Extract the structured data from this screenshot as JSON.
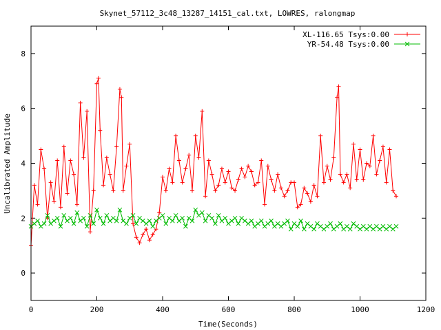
{
  "chart_data": {
    "type": "line",
    "title": "Skynet_57112_3c48_13287_14151_cal.txt, LOWRES, ralongmap",
    "xlabel": "Time(Seconds)",
    "ylabel": "Uncalibrated Amplitude",
    "xlim": [
      0,
      1200
    ],
    "ylim": [
      -1,
      9
    ],
    "xticks": [
      0,
      200,
      400,
      600,
      800,
      1000,
      1200
    ],
    "yticks": [
      0,
      2,
      4,
      6,
      8
    ],
    "grid": false,
    "legend_position": "top-right",
    "series": [
      {
        "name": "XL-116.65 Tsys:0.00",
        "color": "#ff0000",
        "marker": "plus",
        "x": [
          0,
          10,
          20,
          30,
          40,
          50,
          60,
          70,
          80,
          90,
          100,
          110,
          120,
          130,
          140,
          150,
          160,
          170,
          180,
          190,
          200,
          205,
          210,
          220,
          230,
          240,
          250,
          260,
          270,
          275,
          280,
          290,
          300,
          310,
          320,
          330,
          340,
          350,
          360,
          370,
          380,
          390,
          400,
          410,
          420,
          430,
          440,
          450,
          460,
          470,
          480,
          490,
          500,
          510,
          520,
          530,
          540,
          550,
          560,
          570,
          580,
          590,
          600,
          610,
          620,
          630,
          640,
          650,
          660,
          670,
          680,
          690,
          700,
          710,
          720,
          730,
          740,
          750,
          760,
          770,
          780,
          790,
          800,
          810,
          820,
          830,
          840,
          850,
          860,
          870,
          880,
          890,
          900,
          910,
          920,
          930,
          935,
          940,
          950,
          960,
          970,
          980,
          990,
          1000,
          1010,
          1020,
          1030,
          1040,
          1050,
          1060,
          1070,
          1080,
          1090,
          1100,
          1110
        ],
        "y": [
          1.0,
          3.2,
          2.5,
          4.5,
          3.8,
          2.0,
          3.3,
          2.6,
          4.1,
          2.4,
          4.6,
          2.9,
          4.1,
          3.6,
          2.5,
          6.2,
          4.2,
          5.9,
          1.5,
          3.0,
          6.9,
          7.1,
          5.2,
          3.2,
          4.2,
          3.6,
          3.0,
          4.6,
          6.7,
          6.4,
          3.0,
          3.9,
          4.7,
          1.8,
          1.3,
          1.1,
          1.4,
          1.6,
          1.2,
          1.4,
          1.6,
          2.2,
          3.5,
          3.0,
          3.8,
          3.3,
          5.0,
          4.1,
          3.3,
          3.8,
          4.3,
          3.0,
          5.0,
          4.2,
          5.9,
          2.8,
          4.1,
          3.6,
          3.0,
          3.2,
          3.8,
          3.3,
          3.7,
          3.1,
          3.0,
          3.4,
          3.8,
          3.5,
          3.9,
          3.7,
          3.2,
          3.3,
          4.1,
          2.5,
          3.9,
          3.4,
          3.0,
          3.6,
          3.1,
          2.8,
          3.0,
          3.3,
          3.3,
          2.4,
          2.5,
          3.1,
          2.9,
          2.6,
          3.2,
          2.8,
          5.0,
          3.3,
          3.9,
          3.4,
          4.2,
          6.4,
          6.8,
          3.6,
          3.3,
          3.6,
          3.1,
          4.7,
          3.4,
          4.5,
          3.4,
          4.0,
          3.9,
          5.0,
          3.6,
          4.1,
          4.6,
          3.3,
          4.5,
          3.0,
          2.8
        ]
      },
      {
        "name": "YR-54.48 Tsys:0.00",
        "color": "#00bb00",
        "marker": "cross",
        "x": [
          0,
          10,
          20,
          30,
          40,
          50,
          60,
          70,
          80,
          90,
          100,
          110,
          120,
          130,
          140,
          150,
          160,
          170,
          180,
          190,
          200,
          210,
          220,
          230,
          240,
          250,
          260,
          270,
          280,
          290,
          300,
          310,
          320,
          330,
          340,
          350,
          360,
          370,
          380,
          390,
          400,
          410,
          420,
          430,
          440,
          450,
          460,
          470,
          480,
          490,
          500,
          510,
          520,
          530,
          540,
          550,
          560,
          570,
          580,
          590,
          600,
          610,
          620,
          630,
          640,
          650,
          660,
          670,
          680,
          690,
          700,
          710,
          720,
          730,
          740,
          750,
          760,
          770,
          780,
          790,
          800,
          810,
          820,
          830,
          840,
          850,
          860,
          870,
          880,
          890,
          900,
          910,
          920,
          930,
          940,
          950,
          960,
          970,
          980,
          990,
          1000,
          1010,
          1020,
          1030,
          1040,
          1050,
          1060,
          1070,
          1080,
          1090,
          1100,
          1110
        ],
        "y": [
          1.7,
          1.8,
          1.9,
          1.7,
          1.8,
          2.1,
          1.8,
          1.9,
          2.0,
          1.7,
          2.1,
          1.9,
          2.0,
          1.8,
          2.2,
          1.9,
          2.0,
          1.7,
          2.1,
          1.8,
          2.3,
          2.0,
          1.8,
          2.1,
          1.9,
          2.0,
          1.9,
          2.3,
          1.9,
          1.8,
          2.0,
          2.1,
          1.8,
          2.0,
          1.9,
          1.8,
          1.9,
          1.7,
          1.9,
          2.0,
          2.1,
          1.8,
          2.0,
          1.9,
          2.1,
          1.9,
          2.0,
          1.7,
          2.0,
          1.9,
          2.3,
          2.1,
          2.2,
          1.9,
          2.1,
          2.0,
          1.8,
          2.1,
          1.9,
          2.0,
          1.8,
          1.9,
          2.0,
          1.8,
          2.0,
          1.9,
          1.8,
          1.9,
          1.7,
          1.8,
          1.9,
          1.7,
          1.8,
          1.9,
          1.7,
          1.8,
          1.7,
          1.8,
          1.9,
          1.6,
          1.8,
          1.7,
          1.9,
          1.6,
          1.8,
          1.7,
          1.6,
          1.8,
          1.7,
          1.6,
          1.7,
          1.8,
          1.6,
          1.7,
          1.8,
          1.6,
          1.7,
          1.6,
          1.8,
          1.7,
          1.6,
          1.7,
          1.6,
          1.7,
          1.6,
          1.7,
          1.6,
          1.7,
          1.6,
          1.7,
          1.6,
          1.7
        ]
      }
    ]
  }
}
